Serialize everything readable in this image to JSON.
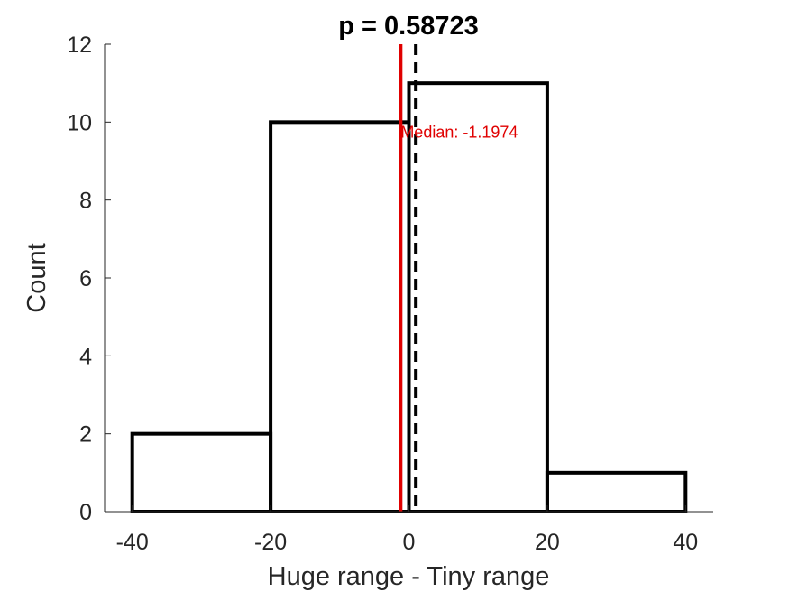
{
  "chart_data": {
    "type": "bar",
    "title": "p = 0.58723",
    "xlabel": "Huge range - Tiny range",
    "ylabel": "Count",
    "bin_edges": [
      -40,
      -20,
      0,
      20,
      40
    ],
    "values": [
      2,
      10,
      11,
      1
    ],
    "xlim": [
      -44,
      44
    ],
    "ylim": [
      0,
      12
    ],
    "xticks": [
      -40,
      -20,
      0,
      20,
      40
    ],
    "yticks": [
      0,
      2,
      4,
      6,
      8,
      10,
      12
    ],
    "median_line": {
      "x": -1.1974,
      "label": "Median: -1.1974",
      "color": "#e00000"
    },
    "reference_line": {
      "x": 1,
      "style": "dashed",
      "color": "#000000"
    },
    "grid": false,
    "bar_fill": "none",
    "bar_edge_color": "#000000"
  }
}
